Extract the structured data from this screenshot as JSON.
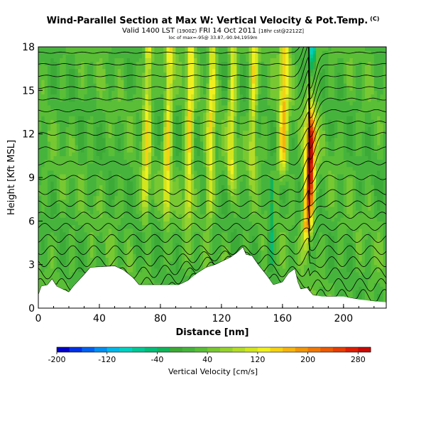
{
  "header": {
    "title": "Wind-Parallel Section at Max W: Vertical Velocity & Pot.Temp.",
    "title_mark": "(C)",
    "valid_main": "Valid 1400 LST",
    "valid_small1": "(1900Z)",
    "valid_mid": "FRI 14 Oct 2011",
    "valid_small2": "[18hr cst@2212Z]",
    "info_line": "loc of max=-95@ 33.87,-90.94,1959m"
  },
  "chart_data": {
    "type": "heatmap",
    "title": "Wind-Parallel Section at Max W: Vertical Velocity & Pot.Temp.",
    "xlabel": "Distance [nm]",
    "ylabel": "Height [Kft MSL]",
    "xlim": [
      0,
      228
    ],
    "ylim": [
      0,
      18
    ],
    "xticks": [
      "0",
      "40",
      "80",
      "120",
      "160",
      "200"
    ],
    "yticks": [
      "0",
      "3",
      "6",
      "9",
      "12",
      "15",
      "18"
    ],
    "x_tick_values": [
      0,
      40,
      80,
      120,
      160,
      200
    ],
    "y_tick_values": [
      0,
      3,
      6,
      9,
      12,
      15,
      18
    ],
    "background_value": 20,
    "features": [
      {
        "kind": "updraft",
        "center": 176,
        "width": 3.2,
        "from": 4,
        "to": 18,
        "peak": 280
      },
      {
        "kind": "downdraft",
        "center": 180,
        "width": 2.5,
        "from": 13,
        "to": 18,
        "peak": -200
      },
      {
        "kind": "wave",
        "center": 70,
        "width": 2.5,
        "from": 6,
        "to": 18,
        "peak": 110
      },
      {
        "kind": "wave",
        "center": 84,
        "width": 2.5,
        "from": 6,
        "to": 18,
        "peak": 120
      },
      {
        "kind": "wave",
        "center": 98,
        "width": 2.5,
        "from": 6,
        "to": 18,
        "peak": 120
      },
      {
        "kind": "wave",
        "center": 112,
        "width": 2.5,
        "from": 6,
        "to": 18,
        "peak": 110
      },
      {
        "kind": "wave",
        "center": 126,
        "width": 2.5,
        "from": 8,
        "to": 18,
        "peak": 100
      },
      {
        "kind": "wave",
        "center": 140,
        "width": 2.5,
        "from": 9,
        "to": 18,
        "peak": 100
      },
      {
        "kind": "wave",
        "center": 160,
        "width": 3,
        "from": 9,
        "to": 18,
        "peak": 140
      },
      {
        "kind": "sink",
        "center": 152,
        "width": 1.5,
        "from": 3,
        "to": 8,
        "peak": -70
      }
    ],
    "terrain": [
      [
        0,
        0.9
      ],
      [
        2,
        1.5
      ],
      [
        6,
        1.6
      ],
      [
        9,
        2.0
      ],
      [
        12,
        1.5
      ],
      [
        20,
        1.1
      ],
      [
        23,
        1.5
      ],
      [
        30,
        2.3
      ],
      [
        34,
        2.8
      ],
      [
        50,
        2.9
      ],
      [
        56,
        2.6
      ],
      [
        62,
        2.1
      ],
      [
        66,
        1.6
      ],
      [
        92,
        1.6
      ],
      [
        98,
        1.9
      ],
      [
        104,
        2.4
      ],
      [
        110,
        2.8
      ],
      [
        116,
        3.0
      ],
      [
        126,
        3.5
      ],
      [
        130,
        3.8
      ],
      [
        134,
        4.2
      ],
      [
        136,
        3.7
      ],
      [
        140,
        3.6
      ],
      [
        144,
        3.0
      ],
      [
        150,
        2.2
      ],
      [
        154,
        1.6
      ],
      [
        160,
        1.8
      ],
      [
        164,
        2.4
      ],
      [
        168,
        2.7
      ],
      [
        170,
        1.8
      ],
      [
        172,
        1.3
      ],
      [
        176,
        1.4
      ],
      [
        180,
        0.9
      ],
      [
        186,
        0.8
      ],
      [
        200,
        0.8
      ],
      [
        210,
        0.6
      ],
      [
        218,
        0.5
      ],
      [
        228,
        0.4
      ]
    ],
    "isentropes": [
      0.8,
      1.6,
      2.4,
      3.2,
      4.0,
      4.8,
      5.6,
      6.4,
      7.2,
      8.0,
      9.0,
      10.0,
      11.0,
      12.0,
      12.8,
      13.6,
      14.4,
      15.2,
      16.0,
      16.8,
      17.6
    ],
    "colorbar": {
      "label": "Vertical Velocity [cm/s]",
      "min": -200,
      "max": 300,
      "tick_labels": [
        "-200",
        "-120",
        "-40",
        "40",
        "120",
        "200",
        "280"
      ],
      "tick_values": [
        -200,
        -120,
        -40,
        40,
        120,
        200,
        280
      ],
      "colors": [
        "#0000c8",
        "#0030e6",
        "#0060f0",
        "#0090f0",
        "#00b8e8",
        "#00d0c0",
        "#00c896",
        "#00bd78",
        "#10b45a",
        "#3caa37",
        "#46b43c",
        "#5abe37",
        "#78c832",
        "#96d22d",
        "#b4dc28",
        "#d2e61e",
        "#f0f01e",
        "#f5d214",
        "#f5b40f",
        "#f0960a",
        "#f07808",
        "#eb5a05",
        "#e63c05",
        "#dc1e05",
        "#c80a05"
      ]
    }
  }
}
